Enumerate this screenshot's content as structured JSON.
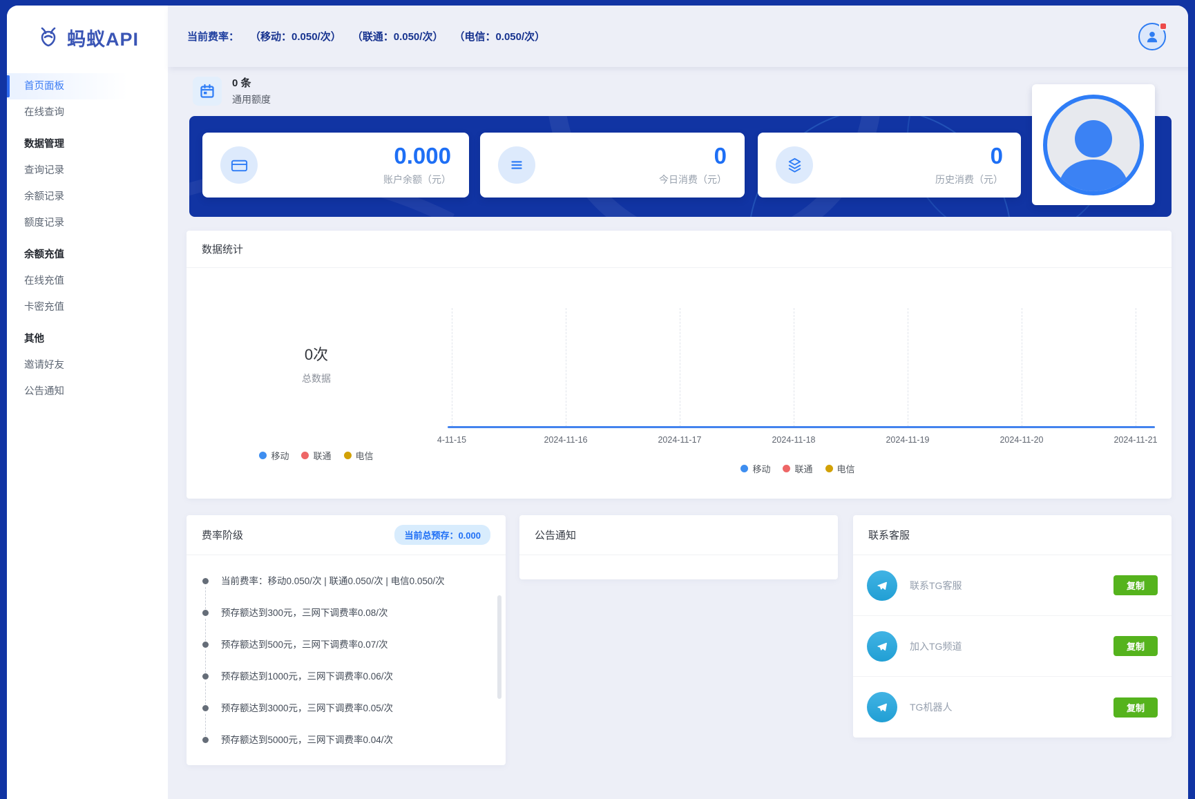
{
  "brand": {
    "name": "蚂蚁API"
  },
  "sidebar": {
    "items": [
      {
        "label": "首页面板",
        "type": "link",
        "active": true
      },
      {
        "label": "在线查询",
        "type": "link"
      },
      {
        "label": "数据管理",
        "type": "section"
      },
      {
        "label": "查询记录",
        "type": "link"
      },
      {
        "label": "余额记录",
        "type": "link"
      },
      {
        "label": "额度记录",
        "type": "link"
      },
      {
        "label": "余额充值",
        "type": "section"
      },
      {
        "label": "在线充值",
        "type": "link"
      },
      {
        "label": "卡密充值",
        "type": "link"
      },
      {
        "label": "其他",
        "type": "section"
      },
      {
        "label": "邀请好友",
        "type": "link"
      },
      {
        "label": "公告通知",
        "type": "link"
      }
    ]
  },
  "topbar": {
    "fee_label": "当前费率：",
    "rates": [
      "（移动：0.050/次）",
      "（联通：0.050/次）",
      "（电信：0.050/次）"
    ]
  },
  "quota": {
    "count": "0 条",
    "label": "通用额度"
  },
  "stats": [
    {
      "value": "0.000",
      "label": "账户余额（元）",
      "icon": "credit-card-icon"
    },
    {
      "value": "0",
      "label": "今日消费（元）",
      "icon": "menu-lines-icon"
    },
    {
      "value": "0",
      "label": "历史消费（元）",
      "icon": "layers-icon"
    }
  ],
  "chart": {
    "title": "数据统计",
    "total_value": "0次",
    "total_label": "总数据",
    "x_labels": [
      "4-11-15",
      "2024-11-16",
      "2024-11-17",
      "2024-11-18",
      "2024-11-19",
      "2024-11-20",
      "2024-11-21"
    ],
    "legend": [
      {
        "label": "移动",
        "color": "#3e8ef0"
      },
      {
        "label": "联通",
        "color": "#ee6666"
      },
      {
        "label": "电信",
        "color": "#d2a106"
      }
    ]
  },
  "chart_data": {
    "type": "line",
    "title": "数据统计",
    "x": [
      "4-11-15",
      "2024-11-16",
      "2024-11-17",
      "2024-11-18",
      "2024-11-19",
      "2024-11-20",
      "2024-11-21"
    ],
    "series": [
      {
        "name": "移动",
        "values": [
          0,
          0,
          0,
          0,
          0,
          0,
          0
        ]
      },
      {
        "name": "联通",
        "values": [
          0,
          0,
          0,
          0,
          0,
          0,
          0
        ]
      },
      {
        "name": "电信",
        "values": [
          0,
          0,
          0,
          0,
          0,
          0,
          0
        ]
      }
    ],
    "total": "0次",
    "grid": "dashed-vertical",
    "legend_position": "bottom"
  },
  "tiers": {
    "title": "费率阶级",
    "badge": "当前总预存：0.000",
    "items": [
      "当前费率：移动0.050/次 | 联通0.050/次 | 电信0.050/次",
      "预存额达到300元，三网下调费率0.08/次",
      "预存额达到500元，三网下调费率0.07/次",
      "预存额达到1000元，三网下调费率0.06/次",
      "预存额达到3000元，三网下调费率0.05/次",
      "预存额达到5000元，三网下调费率0.04/次"
    ]
  },
  "notice": {
    "title": "公告通知"
  },
  "support": {
    "title": "联系客服",
    "items": [
      {
        "label": "联系TG客服",
        "action": "复制"
      },
      {
        "label": "加入TG频道",
        "action": "复制"
      },
      {
        "label": "TG机器人",
        "action": "复制"
      }
    ]
  },
  "colors": {
    "frame_blue": "#1134a3",
    "accent_blue": "#1e6ff5",
    "active_blue": "#3a7bf4",
    "green": "#55b31d",
    "telegram_blue": "#2ea8dc",
    "badge_red": "#ed4a4a"
  }
}
